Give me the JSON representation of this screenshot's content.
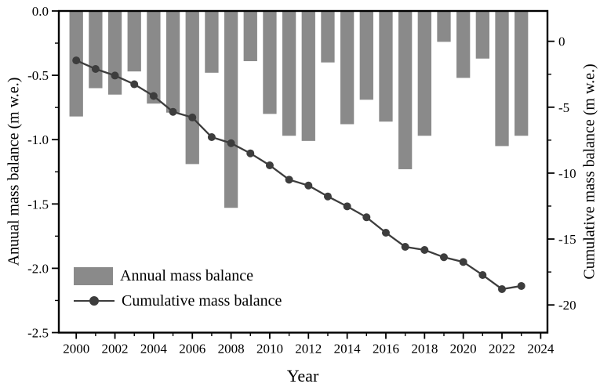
{
  "chart_data": {
    "type": "bar",
    "combo": "bar+line dual-axis",
    "x": [
      2000,
      2001,
      2002,
      2003,
      2004,
      2005,
      2006,
      2007,
      2008,
      2009,
      2010,
      2011,
      2012,
      2013,
      2014,
      2015,
      2016,
      2017,
      2018,
      2019,
      2020,
      2021,
      2022,
      2023
    ],
    "series": [
      {
        "name": "Annual mass balance",
        "type": "bar",
        "axis": "left",
        "values": [
          -0.82,
          -0.6,
          -0.65,
          -0.47,
          -0.72,
          -0.79,
          -1.19,
          -0.48,
          -1.53,
          -0.39,
          -0.8,
          -0.97,
          -1.01,
          -0.4,
          -0.88,
          -0.69,
          -0.86,
          -1.23,
          -0.97,
          -0.24,
          -0.52,
          -0.37,
          -1.05,
          -0.97
        ]
      },
      {
        "name": "Cumulative mass balance",
        "type": "line",
        "axis": "right",
        "values": [
          -1.45,
          -2.1,
          -2.6,
          -3.26,
          -4.15,
          -5.35,
          -5.78,
          -7.27,
          -7.73,
          -8.5,
          -9.41,
          -10.5,
          -10.94,
          -11.77,
          -12.52,
          -13.35,
          -14.52,
          -15.59,
          -15.83,
          -16.38,
          -16.74,
          -17.73,
          -18.8,
          -18.56
        ]
      }
    ],
    "x_axis": {
      "label": "Year",
      "range": [
        1999.1,
        2024.35
      ],
      "major_ticks": [
        {
          "v": 2000,
          "label": "2000"
        },
        {
          "v": 2002,
          "label": "2002"
        },
        {
          "v": 2004,
          "label": "2004"
        },
        {
          "v": 2006,
          "label": "2006"
        },
        {
          "v": 2008,
          "label": "2008"
        },
        {
          "v": 2010,
          "label": "2010"
        },
        {
          "v": 2012,
          "label": "2012"
        },
        {
          "v": 2014,
          "label": "2014"
        },
        {
          "v": 2016,
          "label": "2016"
        },
        {
          "v": 2018,
          "label": "2018"
        },
        {
          "v": 2020,
          "label": "2020"
        },
        {
          "v": 2022,
          "label": "2022"
        },
        {
          "v": 2024,
          "label": "2024"
        }
      ],
      "minor_ticks": [
        2001,
        2003,
        2005,
        2007,
        2009,
        2011,
        2013,
        2015,
        2017,
        2019,
        2021,
        2023
      ]
    },
    "left_axis": {
      "label": "Anuual mass balance (m w.e.)",
      "range": [
        0,
        -2.5
      ],
      "major_ticks": [
        {
          "v": 0,
          "label": "0.0"
        },
        {
          "v": -0.5,
          "label": "-0.5"
        },
        {
          "v": -1.0,
          "label": "-1.0"
        },
        {
          "v": -1.5,
          "label": "-1.5"
        },
        {
          "v": -2.0,
          "label": "-2.0"
        },
        {
          "v": -2.5,
          "label": "-2.5"
        }
      ],
      "minor_ticks": [
        -0.25,
        -0.75,
        -1.25,
        -1.75,
        -2.25
      ]
    },
    "right_axis": {
      "label": "Cumulative mass balance (m w.e.)",
      "range": [
        2.3,
        -22.1
      ],
      "major_ticks": [
        {
          "v": 0,
          "label": "0"
        },
        {
          "v": -5,
          "label": "-5"
        },
        {
          "v": -10,
          "label": "-10"
        },
        {
          "v": -15,
          "label": "-15"
        },
        {
          "v": -20,
          "label": "-20"
        }
      ],
      "minor_ticks": [
        -2.5,
        -7.5,
        -12.5,
        -17.5
      ]
    },
    "legend": {
      "position": "inside bottom-left",
      "items": [
        "Annual mass balance",
        "Cumulative mass balance"
      ]
    },
    "grid": "off",
    "colors": {
      "bar": "#8a8a8a",
      "line": "#3d3d3d",
      "marker": "#3d3d3d",
      "axis": "#000000",
      "background": "#ffffff"
    }
  }
}
